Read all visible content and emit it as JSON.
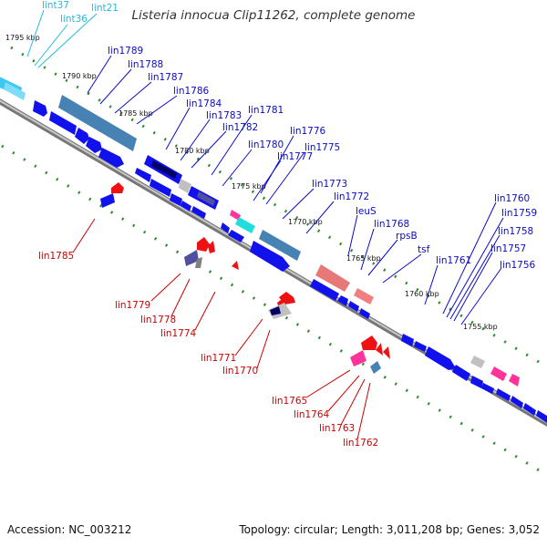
{
  "title": "Listeria innocua Clip11262, complete genome",
  "footer": {
    "accession": "Accession: NC_003212",
    "summary": "Topology: circular; Length: 3,011,208 bp; Genes: 3,052"
  },
  "colors": {
    "forward_label": "#0a0acc",
    "reverse_label": "#cc0000",
    "rna_label": "#22bbdd",
    "backbone": "#999999",
    "tick": "#2e8b2e"
  },
  "ruler": [
    "1795 kbp",
    "1790 kbp",
    "1785 kbp",
    "1780 kbp",
    "1775 kbp",
    "1770 kbp",
    "1765 kbp",
    "1760 kbp",
    "1755 kbp"
  ],
  "rna_labels": [
    "lint37",
    "lint36",
    "lint21"
  ],
  "forward_labels": [
    "lin1789",
    "lin1788",
    "lin1787",
    "lin1786",
    "lin1784",
    "lin1783",
    "lin1781",
    "lin1782",
    "lin1776",
    "lin1780",
    "lin1777",
    "lin1775",
    "lin1773",
    "lin1772",
    "leuS",
    "lin1768",
    "rpsB",
    "tsf",
    "lin1761",
    "lin1760",
    "lin1759",
    "lin1758",
    "lin1757",
    "lin1756"
  ],
  "reverse_labels": [
    "lin1785",
    "lin1779",
    "lin1778",
    "lin1774",
    "lin1771",
    "lin1770",
    "lin1765",
    "lin1764",
    "lin1763",
    "lin1762"
  ]
}
